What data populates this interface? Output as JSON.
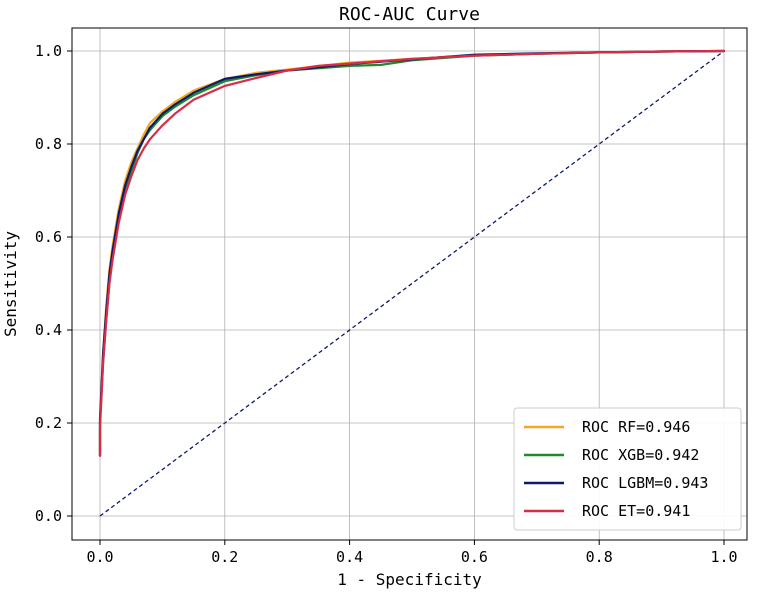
{
  "chart_data": {
    "type": "line",
    "title": "ROC-AUC Curve",
    "xlabel": "1 - Specificity",
    "ylabel": "Sensitivity",
    "xlim": [
      0.0,
      1.0
    ],
    "ylim": [
      0.0,
      1.0
    ],
    "x_ticks": [
      "0.0",
      "0.2",
      "0.4",
      "0.6",
      "0.8",
      "1.0"
    ],
    "y_ticks": [
      "0.0",
      "0.2",
      "0.4",
      "0.6",
      "0.8",
      "1.0"
    ],
    "grid": true,
    "legend_position": "lower-right",
    "series": [
      {
        "name": "ROC RF=0.946",
        "color": "#f5a623",
        "x": [
          0.0,
          0.0,
          0.005,
          0.01,
          0.015,
          0.02,
          0.03,
          0.04,
          0.05,
          0.06,
          0.07,
          0.08,
          0.1,
          0.12,
          0.15,
          0.2,
          0.25,
          0.3,
          0.4,
          0.5,
          0.6,
          0.7,
          0.8,
          0.9,
          1.0
        ],
        "y": [
          0.13,
          0.2,
          0.35,
          0.45,
          0.53,
          0.58,
          0.66,
          0.72,
          0.76,
          0.79,
          0.82,
          0.845,
          0.87,
          0.89,
          0.915,
          0.94,
          0.953,
          0.96,
          0.975,
          0.983,
          0.99,
          0.994,
          0.997,
          0.999,
          1.0
        ]
      },
      {
        "name": "ROC XGB=0.942",
        "color": "#1e8a2e",
        "x": [
          0.0,
          0.0,
          0.005,
          0.01,
          0.015,
          0.02,
          0.03,
          0.04,
          0.05,
          0.06,
          0.07,
          0.08,
          0.1,
          0.12,
          0.15,
          0.2,
          0.25,
          0.3,
          0.4,
          0.45,
          0.5,
          0.6,
          0.7,
          0.8,
          0.9,
          1.0
        ],
        "y": [
          0.13,
          0.2,
          0.33,
          0.42,
          0.5,
          0.56,
          0.64,
          0.7,
          0.74,
          0.78,
          0.81,
          0.83,
          0.86,
          0.88,
          0.905,
          0.935,
          0.948,
          0.958,
          0.968,
          0.97,
          0.98,
          0.99,
          0.994,
          0.997,
          0.999,
          1.0
        ]
      },
      {
        "name": "ROC LGBM=0.943",
        "color": "#0d1a6b",
        "x": [
          0.0,
          0.0,
          0.005,
          0.01,
          0.015,
          0.02,
          0.03,
          0.04,
          0.05,
          0.06,
          0.07,
          0.08,
          0.1,
          0.12,
          0.15,
          0.2,
          0.25,
          0.3,
          0.4,
          0.5,
          0.6,
          0.7,
          0.8,
          0.9,
          1.0
        ],
        "y": [
          0.13,
          0.21,
          0.35,
          0.44,
          0.52,
          0.57,
          0.65,
          0.71,
          0.75,
          0.785,
          0.81,
          0.835,
          0.865,
          0.885,
          0.91,
          0.94,
          0.95,
          0.958,
          0.972,
          0.982,
          0.992,
          0.995,
          0.997,
          0.999,
          1.0
        ]
      },
      {
        "name": "ROC ET=0.941",
        "color": "#d92b4a",
        "x": [
          0.0,
          0.0,
          0.005,
          0.01,
          0.015,
          0.02,
          0.03,
          0.04,
          0.05,
          0.06,
          0.07,
          0.08,
          0.1,
          0.12,
          0.15,
          0.2,
          0.25,
          0.3,
          0.35,
          0.4,
          0.5,
          0.6,
          0.7,
          0.8,
          0.9,
          1.0
        ],
        "y": [
          0.13,
          0.19,
          0.33,
          0.42,
          0.5,
          0.55,
          0.63,
          0.69,
          0.73,
          0.765,
          0.79,
          0.81,
          0.84,
          0.865,
          0.895,
          0.925,
          0.942,
          0.958,
          0.968,
          0.973,
          0.983,
          0.99,
          0.994,
          0.997,
          0.999,
          1.0
        ]
      }
    ],
    "reference_line": {
      "color": "#0d1a6b",
      "style": "dashed",
      "x": [
        0.0,
        1.0
      ],
      "y": [
        0.0,
        1.0
      ]
    }
  }
}
